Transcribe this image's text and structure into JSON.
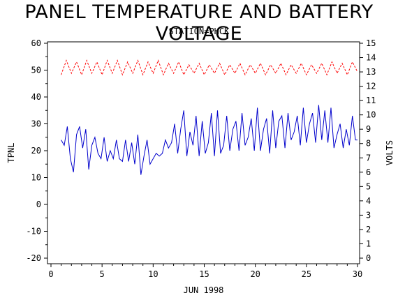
{
  "chart_data": {
    "type": "line",
    "title": "PANEL TEMPERATURE AND BATTERY VOLTAGE",
    "subtitle": "STATION=PHCK",
    "xlabel": "JUN 1998",
    "ylabel_left": "TPNL",
    "ylabel_right": "VOLTS",
    "xlim": [
      0,
      30
    ],
    "ylim_left": [
      -20,
      60
    ],
    "ylim_right": [
      0,
      15
    ],
    "x_ticks": [
      "0",
      "5",
      "10",
      "15",
      "20",
      "25",
      "30"
    ],
    "y_left_ticks": [
      "-20",
      "-10",
      "0",
      "10",
      "20",
      "30",
      "40",
      "50",
      "60"
    ],
    "y_right_ticks": [
      "0",
      "1",
      "2",
      "3",
      "4",
      "5",
      "6",
      "7",
      "8",
      "9",
      "10",
      "11",
      "12",
      "13",
      "14",
      "15"
    ],
    "grid": false,
    "series": [
      {
        "axis": "left",
        "color": "#0000cc",
        "line_style": "solid",
        "x": [
          1.0,
          1.3,
          1.6,
          1.9,
          2.2,
          2.5,
          2.8,
          3.1,
          3.4,
          3.7,
          4.0,
          4.3,
          4.6,
          4.9,
          5.2,
          5.5,
          5.8,
          6.1,
          6.4,
          6.7,
          7.0,
          7.3,
          7.6,
          7.9,
          8.2,
          8.5,
          8.8,
          9.1,
          9.4,
          9.7,
          10.0,
          10.3,
          10.6,
          10.9,
          11.2,
          11.5,
          11.8,
          12.1,
          12.4,
          12.7,
          13.0,
          13.3,
          13.6,
          13.9,
          14.2,
          14.5,
          14.8,
          15.1,
          15.4,
          15.7,
          16.0,
          16.3,
          16.6,
          16.9,
          17.2,
          17.5,
          17.8,
          18.1,
          18.4,
          18.7,
          19.0,
          19.3,
          19.6,
          19.9,
          20.2,
          20.5,
          20.8,
          21.1,
          21.4,
          21.7,
          22.0,
          22.3,
          22.6,
          22.9,
          23.2,
          23.5,
          23.8,
          24.1,
          24.4,
          24.7,
          25.0,
          25.3,
          25.6,
          25.9,
          26.2,
          26.5,
          26.8,
          27.1,
          27.4,
          27.7,
          28.0,
          28.3,
          28.6,
          28.9,
          29.2,
          29.5,
          29.8,
          30.0
        ],
        "values": [
          24,
          22,
          29,
          17,
          12,
          26,
          29,
          21,
          28,
          13,
          22,
          25,
          19,
          17,
          25,
          16,
          20,
          17,
          24,
          17,
          16,
          24,
          16,
          23,
          15,
          26,
          11,
          18,
          24,
          15,
          17,
          19,
          18,
          19,
          24,
          21,
          23,
          30,
          19,
          28,
          35,
          18,
          27,
          22,
          33,
          18,
          31,
          19,
          23,
          34,
          18,
          35,
          19,
          22,
          33,
          20,
          28,
          31,
          20,
          34,
          22,
          25,
          32,
          20,
          36,
          20,
          28,
          32,
          19,
          35,
          21,
          31,
          33,
          21,
          34,
          24,
          27,
          33,
          22,
          36,
          23,
          30,
          34,
          23,
          37,
          24,
          35,
          23,
          36,
          21,
          26,
          30,
          21,
          28,
          22,
          33,
          24,
          24
        ]
      },
      {
        "axis": "right",
        "color": "#ff0000",
        "line_style": "dashed",
        "x": [
          1.0,
          1.5,
          2.0,
          2.5,
          3.0,
          3.5,
          4.0,
          4.5,
          5.0,
          5.5,
          6.0,
          6.5,
          7.0,
          7.5,
          8.0,
          8.5,
          9.0,
          9.5,
          10.0,
          10.5,
          11.0,
          11.5,
          12.0,
          12.5,
          13.0,
          13.5,
          14.0,
          14.5,
          15.0,
          15.5,
          16.0,
          16.5,
          17.0,
          17.5,
          18.0,
          18.5,
          19.0,
          19.5,
          20.0,
          20.5,
          21.0,
          21.5,
          22.0,
          22.5,
          23.0,
          23.5,
          24.0,
          24.5,
          25.0,
          25.5,
          26.0,
          26.5,
          27.0,
          27.5,
          28.0,
          28.5,
          29.0,
          29.5,
          30.0
        ],
        "values": [
          12.8,
          13.8,
          12.9,
          13.7,
          12.8,
          13.8,
          12.9,
          13.7,
          12.8,
          13.8,
          12.9,
          13.8,
          12.8,
          13.7,
          12.9,
          13.8,
          12.8,
          13.7,
          12.9,
          13.8,
          12.8,
          13.6,
          12.9,
          13.7,
          12.8,
          13.5,
          12.9,
          13.6,
          12.8,
          13.5,
          12.9,
          13.6,
          12.8,
          13.5,
          12.9,
          13.6,
          12.8,
          13.5,
          12.9,
          13.6,
          12.8,
          13.5,
          12.9,
          13.6,
          12.8,
          13.5,
          12.9,
          13.6,
          12.8,
          13.5,
          12.9,
          13.6,
          12.8,
          13.7,
          12.9,
          13.6,
          12.8,
          13.7,
          13.0
        ]
      }
    ]
  }
}
